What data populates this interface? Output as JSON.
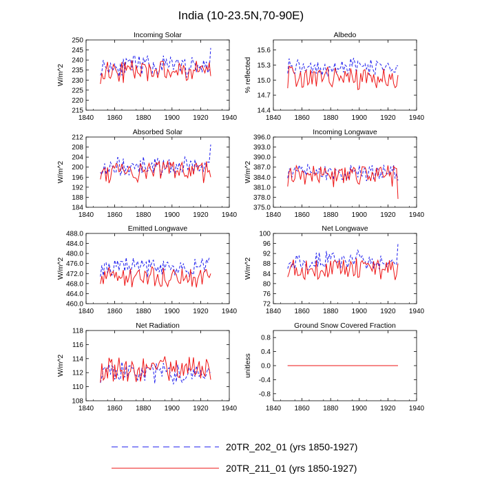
{
  "figure": {
    "title": "India (10-23.5N,70-90E)"
  },
  "legend": {
    "entries": [
      {
        "label": "20TR_202_01 (yrs 1850-1927)",
        "color": "#1a1aee",
        "style": "dashed"
      },
      {
        "label": "20TR_211_01 (yrs 1850-1927)",
        "color": "#ee1111",
        "style": "solid"
      }
    ]
  },
  "chart_data": [
    {
      "type": "line",
      "title": "Incoming Solar",
      "ylabel": "W/m^2",
      "xlim": [
        1840,
        1940
      ],
      "xticks": [
        1840,
        1860,
        1880,
        1900,
        1920,
        1940
      ],
      "xtick_labels": [
        "1840",
        "1860",
        "1880",
        "1900",
        "1920",
        "1940"
      ],
      "ylim": [
        215,
        250
      ],
      "yticks": [
        215,
        220,
        225,
        230,
        235,
        240,
        245,
        250
      ],
      "ytick_labels": [
        "215",
        "220",
        "225",
        "230",
        "235",
        "240",
        "245",
        "250"
      ],
      "x_start": 1850,
      "x_end": 1927,
      "series": [
        {
          "name": "20TR_202_01",
          "mean": 237,
          "amp": 4.5,
          "seed": 11,
          "end_value": 246
        },
        {
          "name": "20TR_211_01",
          "mean": 234.5,
          "amp": 5.0,
          "seed": 23,
          "end_value": 232
        }
      ]
    },
    {
      "type": "line",
      "title": "Albedo",
      "ylabel": "% reflected",
      "xlim": [
        1840,
        1940
      ],
      "xticks": [
        1840,
        1860,
        1880,
        1900,
        1920,
        1940
      ],
      "xtick_labels": [
        "1840",
        "1860",
        "1880",
        "1900",
        "1920",
        "1940"
      ],
      "ylim": [
        14.4,
        15.8
      ],
      "yticks": [
        14.4,
        14.7,
        15.0,
        15.3,
        15.6
      ],
      "ytick_labels": [
        "14.4",
        "14.7",
        "15.0",
        "15.3",
        "15.6"
      ],
      "x_start": 1850,
      "x_end": 1927,
      "series": [
        {
          "name": "20TR_202_01",
          "mean": 15.25,
          "amp": 0.15,
          "seed": 37,
          "end_value": 15.28
        },
        {
          "name": "20TR_211_01",
          "mean": 15.05,
          "amp": 0.2,
          "seed": 41,
          "end_value": 15.1
        }
      ]
    },
    {
      "type": "line",
      "title": "Absorbed Solar",
      "ylabel": "W/m^2",
      "xlim": [
        1840,
        1940
      ],
      "xticks": [
        1840,
        1860,
        1880,
        1900,
        1920,
        1940
      ],
      "xtick_labels": [
        "1840",
        "1860",
        "1880",
        "1900",
        "1920",
        "1940"
      ],
      "ylim": [
        184,
        212
      ],
      "yticks": [
        184,
        188,
        192,
        196,
        200,
        204,
        208,
        212
      ],
      "ytick_labels": [
        "184",
        "188",
        "192",
        "196",
        "200",
        "204",
        "208",
        "212"
      ],
      "x_start": 1850,
      "x_end": 1927,
      "series": [
        {
          "name": "20TR_202_01",
          "mean": 200.5,
          "amp": 3.5,
          "seed": 53,
          "end_value": 209
        },
        {
          "name": "20TR_211_01",
          "mean": 198.5,
          "amp": 4.0,
          "seed": 59,
          "end_value": 196
        }
      ]
    },
    {
      "type": "line",
      "title": "Incoming Longwave",
      "ylabel": "W/m^2",
      "xlim": [
        1840,
        1940
      ],
      "xticks": [
        1840,
        1860,
        1880,
        1900,
        1920,
        1940
      ],
      "xtick_labels": [
        "1840",
        "1860",
        "1880",
        "1900",
        "1920",
        "1940"
      ],
      "ylim": [
        375,
        396
      ],
      "yticks": [
        375,
        378,
        381,
        384,
        387,
        390,
        393,
        396
      ],
      "ytick_labels": [
        "375.0",
        "378.0",
        "381.0",
        "384.0",
        "387.0",
        "390.0",
        "393.0",
        "396.0"
      ],
      "x_start": 1850,
      "x_end": 1927,
      "series": [
        {
          "name": "20TR_202_01",
          "mean": 385.5,
          "amp": 2.2,
          "seed": 67,
          "end_value": 383
        },
        {
          "name": "20TR_211_01",
          "mean": 384.5,
          "amp": 3.0,
          "seed": 71,
          "end_value": 377.5
        }
      ]
    },
    {
      "type": "line",
      "title": "Emitted Longwave",
      "ylabel": "W/m^2",
      "xlim": [
        1840,
        1940
      ],
      "xticks": [
        1840,
        1860,
        1880,
        1900,
        1920,
        1940
      ],
      "xtick_labels": [
        "1840",
        "1860",
        "1880",
        "1900",
        "1920",
        "1940"
      ],
      "ylim": [
        460,
        488
      ],
      "yticks": [
        460,
        464,
        468,
        472,
        476,
        480,
        484,
        488
      ],
      "ytick_labels": [
        "460.0",
        "464.0",
        "468.0",
        "472.0",
        "476.0",
        "480.0",
        "484.0",
        "488.0"
      ],
      "x_start": 1850,
      "x_end": 1927,
      "series": [
        {
          "name": "20TR_202_01",
          "mean": 474.5,
          "amp": 3.5,
          "seed": 79,
          "end_value": 478
        },
        {
          "name": "20TR_211_01",
          "mean": 470.5,
          "amp": 3.5,
          "seed": 83,
          "end_value": 472
        }
      ]
    },
    {
      "type": "line",
      "title": "Net Longwave",
      "ylabel": "W/m^2",
      "xlim": [
        1840,
        1940
      ],
      "xticks": [
        1840,
        1860,
        1880,
        1900,
        1920,
        1940
      ],
      "xtick_labels": [
        "1840",
        "1860",
        "1880",
        "1900",
        "1920",
        "1940"
      ],
      "ylim": [
        72,
        100
      ],
      "yticks": [
        72,
        76,
        80,
        84,
        88,
        92,
        96,
        100
      ],
      "ytick_labels": [
        "72",
        "76",
        "80",
        "84",
        "88",
        "92",
        "96",
        "100"
      ],
      "x_start": 1850,
      "x_end": 1927,
      "series": [
        {
          "name": "20TR_202_01",
          "mean": 89,
          "amp": 3.5,
          "seed": 89,
          "end_value": 96
        },
        {
          "name": "20TR_211_01",
          "mean": 86,
          "amp": 4.0,
          "seed": 97,
          "end_value": 88
        }
      ]
    },
    {
      "type": "line",
      "title": "Net Radiation",
      "ylabel": "W/m^2",
      "xlim": [
        1840,
        1940
      ],
      "xticks": [
        1840,
        1860,
        1880,
        1900,
        1920,
        1940
      ],
      "xtick_labels": [
        "1840",
        "1860",
        "1880",
        "1900",
        "1920",
        "1940"
      ],
      "ylim": [
        108,
        118
      ],
      "yticks": [
        108,
        110,
        112,
        114,
        116,
        118
      ],
      "ytick_labels": [
        "108",
        "110",
        "112",
        "114",
        "116",
        "118"
      ],
      "x_start": 1850,
      "x_end": 1927,
      "series": [
        {
          "name": "20TR_202_01",
          "mean": 112,
          "amp": 1.3,
          "seed": 101,
          "end_value": 112
        },
        {
          "name": "20TR_211_01",
          "mean": 112.6,
          "amp": 1.6,
          "seed": 107,
          "end_value": 111
        }
      ]
    },
    {
      "type": "line",
      "title": "Ground Snow Covered Fraction",
      "ylabel": "unitless",
      "xlim": [
        1840,
        1940
      ],
      "xticks": [
        1840,
        1860,
        1880,
        1900,
        1920,
        1940
      ],
      "xtick_labels": [
        "1840",
        "1860",
        "1880",
        "1900",
        "1920",
        "1940"
      ],
      "ylim": [
        -1.0,
        1.0
      ],
      "yticks": [
        -0.8,
        -0.4,
        0.0,
        0.4,
        0.8
      ],
      "ytick_labels": [
        "-0.8",
        "-0.4",
        "0.0",
        "0.4",
        "0.8"
      ],
      "x_start": 1850,
      "x_end": 1927,
      "series": [
        {
          "name": "20TR_202_01",
          "mean": 0,
          "amp": 0,
          "seed": 1,
          "end_value": 0
        },
        {
          "name": "20TR_211_01",
          "mean": 0,
          "amp": 0,
          "seed": 2,
          "end_value": 0
        }
      ]
    }
  ]
}
